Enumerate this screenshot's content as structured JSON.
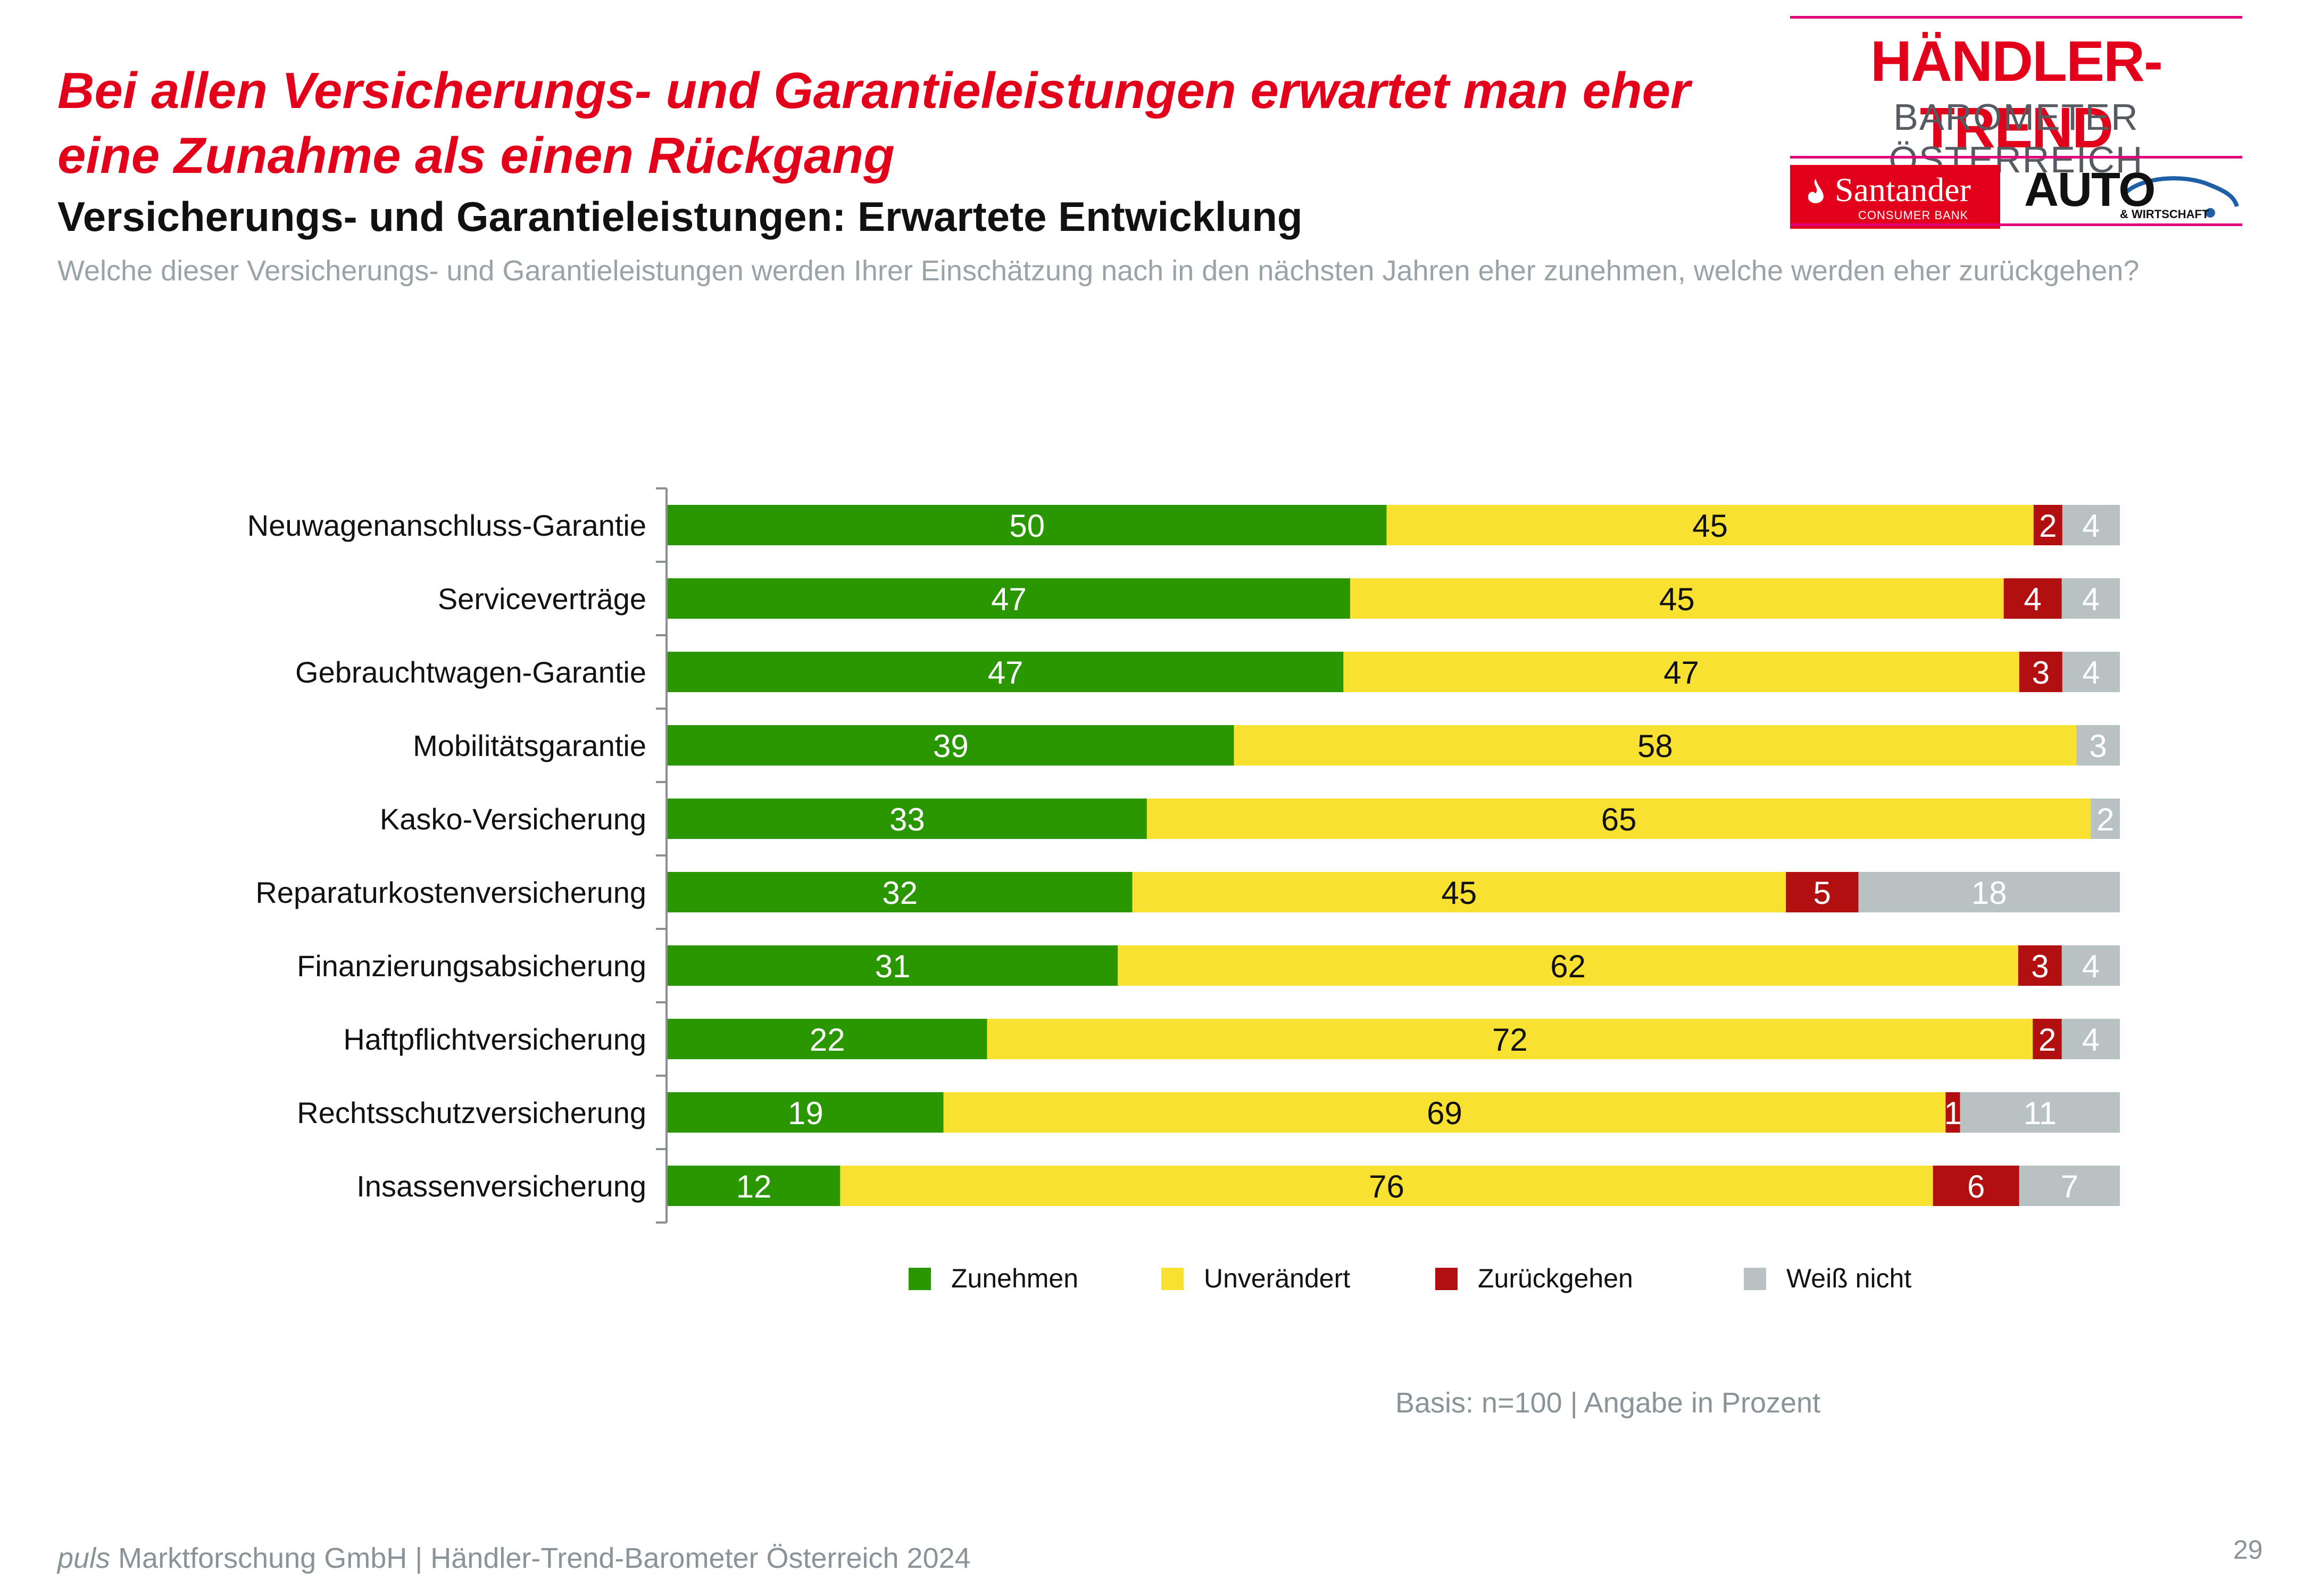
{
  "headline": "Bei allen Versicherungs- und Garantieleistungen erwartet man eher eine Zunahme als einen Rückgang",
  "subtitle": "Versicherungs- und Garantieleistungen: Erwartete Entwicklung",
  "question": "Welche dieser Versicherungs- und Garantieleistungen werden Ihrer Einschätzung nach in den nächsten Jahren eher zunehmen, welche werden eher zurückgehen?",
  "logo": {
    "brand": "HÄNDLER-TREND",
    "sub": "BAROMETER ÖSTERREICH",
    "santander_name": "Santander",
    "santander_sub": "CONSUMER BANK",
    "auto_name": "AUTO",
    "auto_sub": "& WIRTSCHAFT",
    "brand_color": "#e3001b",
    "line_color": "#e0007a"
  },
  "chart_data": {
    "type": "bar",
    "orientation": "horizontal",
    "stacked": true,
    "categories": [
      "Neuwagenanschluss-Garantie",
      "Serviceverträge",
      "Gebrauchtwagen-Garantie",
      "Mobilitätsgarantie",
      "Kasko-Versicherung",
      "Reparaturkostenversicherung",
      "Finanzierungsabsicherung",
      "Haftpflichtversicherung",
      "Rechtsschutzversicherung",
      "Insassenversicherung"
    ],
    "series": [
      {
        "name": "Zunehmen",
        "color": "#2a9600",
        "label_color": "#ffffff",
        "values": [
          50,
          47,
          47,
          39,
          33,
          32,
          31,
          22,
          19,
          12
        ]
      },
      {
        "name": "Unverändert",
        "color": "#f9e132",
        "label_color": "#111111",
        "values": [
          45,
          45,
          47,
          58,
          65,
          45,
          62,
          72,
          69,
          76
        ]
      },
      {
        "name": "Zurückgehen",
        "color": "#b21010",
        "label_color": "#ffffff",
        "values": [
          2,
          4,
          3,
          null,
          null,
          5,
          3,
          2,
          1,
          6
        ]
      },
      {
        "name": "Weiß nicht",
        "color": "#b8c2c2",
        "label_color": "#ffffff",
        "values": [
          4,
          4,
          4,
          3,
          2,
          18,
          4,
          4,
          11,
          7
        ]
      }
    ],
    "legend_position": "bottom",
    "grid": false
  },
  "basis": "Basis: n=100 | Angabe in Prozent",
  "footer": {
    "italic": "puls",
    "text": " Marktforschung GmbH | Händler-Trend-Barometer Österreich 2024"
  },
  "page_number": "29"
}
